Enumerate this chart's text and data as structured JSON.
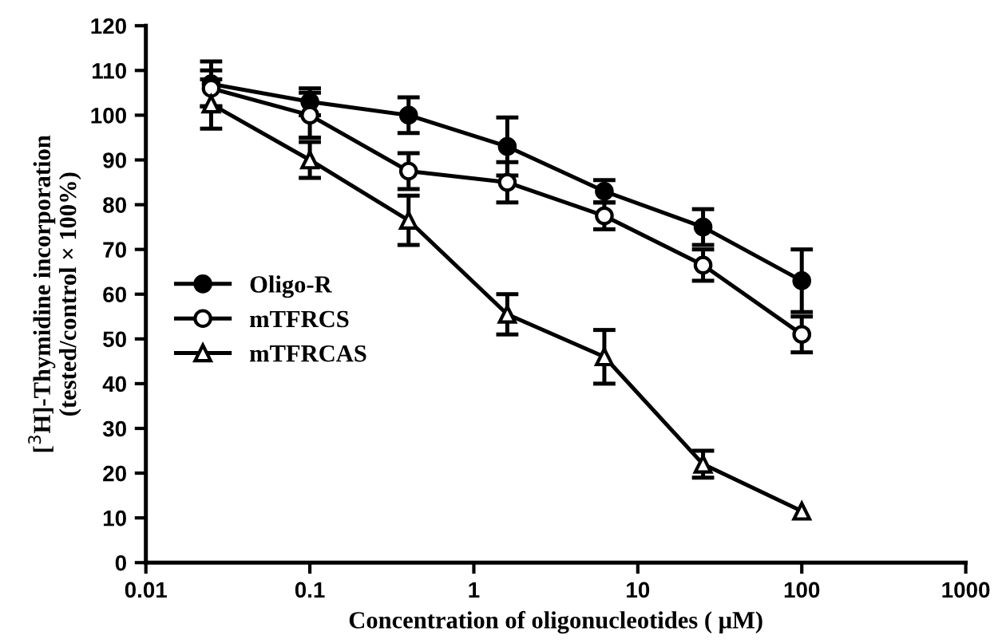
{
  "chart_data": {
    "type": "line",
    "xlabel": "Concentration of oligonucleotides ( μM)",
    "ylabel": "[$^{3}$H]-Thymidine incorporation\n(tested/control × 100%)",
    "x": [
      0.025,
      0.1,
      0.4,
      1.6,
      6.25,
      25,
      100
    ],
    "series": [
      {
        "name": "Oligo-R",
        "color": "#000000",
        "marker": "circle",
        "values": [
          107,
          103,
          100,
          93,
          83,
          75,
          63
        ],
        "errors": [
          5,
          3,
          4,
          6.5,
          2.5,
          4,
          7
        ]
      },
      {
        "name": "mTFRCS",
        "color": "#000000",
        "marker": "circle",
        "values": [
          106,
          100,
          87.5,
          85,
          77.5,
          66.5,
          51
        ],
        "errors": [
          4,
          5,
          4,
          4.5,
          3,
          3.5,
          4
        ]
      },
      {
        "name": "mTFRCAS",
        "color": "#000000",
        "marker": "triangle",
        "values": [
          102.5,
          90,
          76.5,
          55.5,
          46,
          22,
          11.5
        ],
        "errors": [
          5.5,
          4,
          5.5,
          4.5,
          6,
          3,
          null
        ]
      }
    ],
    "log": "x",
    "xlim": [
      0.01,
      1000
    ],
    "xticks": [
      0.01,
      0.1,
      1,
      10,
      100,
      1000
    ],
    "ylim": [
      0,
      120
    ],
    "yticks": [
      0,
      10,
      20,
      30,
      40,
      50,
      60,
      70,
      80,
      90,
      100,
      110,
      120
    ],
    "grid": false,
    "legend": "center left",
    "line_style": "solid"
  }
}
